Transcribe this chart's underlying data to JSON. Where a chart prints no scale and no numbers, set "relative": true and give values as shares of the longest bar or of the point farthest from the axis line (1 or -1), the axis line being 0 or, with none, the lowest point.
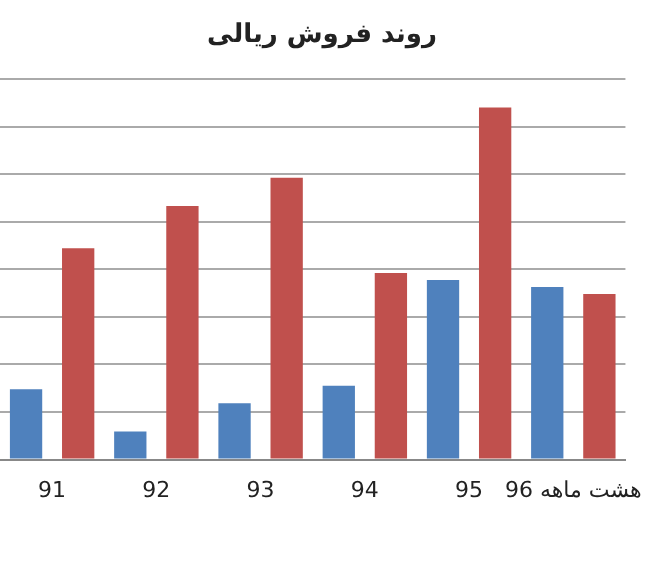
{
  "chart_data": {
    "type": "bar",
    "title": "روند فروش ریالی",
    "categories": [
      "91",
      "92",
      "93",
      "94",
      "95",
      "هشت ماهه 96"
    ],
    "relative": true,
    "grid": "y",
    "legend": false,
    "series": [
      {
        "color": "#4f81bd",
        "values": [
          0.2,
          0.08,
          0.16,
          0.21,
          0.51,
          0.49
        ]
      },
      {
        "color": "#c0504d",
        "values": [
          0.6,
          0.72,
          0.8,
          0.53,
          1,
          0.47
        ]
      }
    ]
  }
}
